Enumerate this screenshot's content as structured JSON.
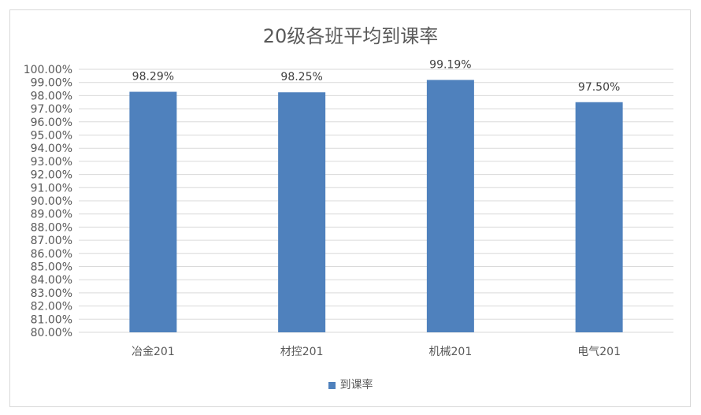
{
  "chart_data": {
    "type": "bar",
    "title": "20级各班平均到课率",
    "categories": [
      "冶金201",
      "材控201",
      "机械201",
      "电气201"
    ],
    "series": [
      {
        "name": "到课率",
        "values": [
          98.29,
          98.25,
          99.19,
          97.5
        ],
        "color": "#4f81bd"
      }
    ],
    "data_labels": [
      "98.29%",
      "98.25%",
      "99.19%",
      "97.50%"
    ],
    "ylim": [
      80,
      100
    ],
    "ytick_step": 1,
    "ytick_format": "percent_2dp",
    "grid": true,
    "legend_placement": "bottom"
  }
}
